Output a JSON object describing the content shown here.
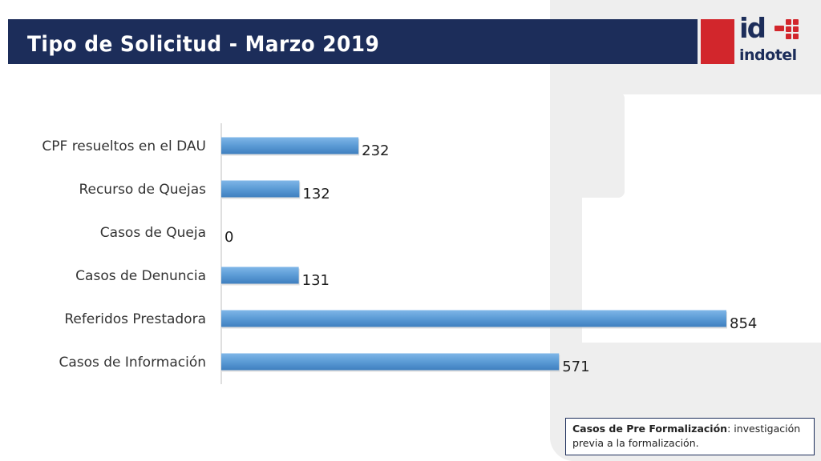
{
  "header": {
    "title": "Tipo de Solicitud - Marzo 2019"
  },
  "logo": {
    "mark": "id",
    "word": "indotel"
  },
  "colors": {
    "header_bg": "#1c2d5a",
    "bar": "#5b9bd5",
    "logo_red": "#d2262c"
  },
  "chart_data": {
    "type": "bar",
    "orientation": "horizontal",
    "categories": [
      "CPF resueltos en el DAU",
      "Recurso de Quejas",
      "Casos de Queja",
      "Casos de Denuncia",
      "Referidos Prestadora",
      "Casos de Información"
    ],
    "values": [
      232,
      132,
      0,
      131,
      854,
      571
    ],
    "data_labels": [
      "232",
      "132",
      "0",
      "131",
      "854",
      "571"
    ],
    "xlim": [
      0,
      854
    ],
    "grid": false,
    "legend": "none"
  },
  "note": {
    "term": "Casos de Pre Formalización",
    "text": ": investigación previa a la formalización."
  }
}
